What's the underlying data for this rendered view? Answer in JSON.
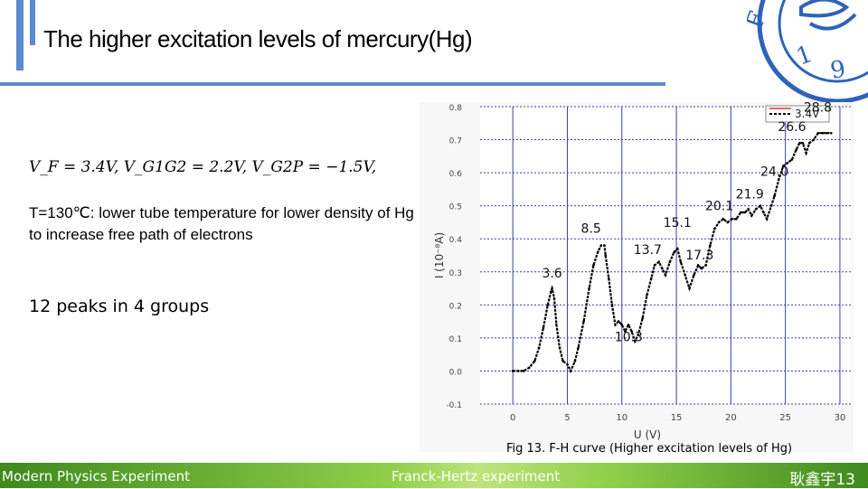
{
  "slide": {
    "title": "The higher excitation levels of mercury(Hg)",
    "formula": "V_F = 3.4V,  V_G1G2 = 2.2V, V_G2P = −1.5V,",
    "temp_note": "T=130℃: lower tube temperature for lower density of Hg to increase free path of electrons",
    "peaks_note": "12 peaks in 4 groups",
    "caption": "Fig 13. F-H curve (Higher excitation levels of Hg)",
    "accent_color": "#5b8bd0"
  },
  "footer": {
    "left": "Modern Physics Experiment",
    "center": "Franck-Hertz experiment",
    "right": "耿鑫宇13",
    "color": "#6cb33f"
  },
  "chart_data": {
    "type": "line",
    "xlabel": "U (V)",
    "ylabel": "I (10⁻⁸A)",
    "xlim": [
      -3,
      31
    ],
    "ylim": [
      -0.1,
      0.8
    ],
    "x_ticks": [
      "0",
      "5",
      "10",
      "15",
      "20",
      "25",
      "30"
    ],
    "y_ticks": [
      "-0.1",
      "0.0",
      "0.1",
      "0.2",
      "0.3",
      "0.4",
      "0.5",
      "0.6",
      "0.7",
      "0.8"
    ],
    "grid": true,
    "legend": {
      "label": "3.4V",
      "position": "top-right"
    },
    "series": [
      {
        "name": "3.4V",
        "color": "#000000",
        "x": [
          0,
          0.5,
          1.0,
          1.5,
          2.0,
          2.4,
          2.8,
          3.2,
          3.5,
          3.6,
          3.8,
          4.0,
          4.3,
          4.6,
          5.0,
          5.3,
          5.7,
          6.0,
          6.5,
          7.0,
          7.4,
          7.8,
          8.1,
          8.4,
          8.5,
          8.8,
          9.1,
          9.4,
          9.7,
          10.0,
          10.3,
          10.6,
          10.9,
          11.2,
          11.5,
          11.9,
          12.3,
          12.7,
          13.0,
          13.4,
          13.7,
          14.0,
          14.4,
          14.8,
          15.1,
          15.4,
          15.8,
          16.2,
          16.6,
          17.0,
          17.3,
          17.7,
          18.1,
          18.5,
          18.9,
          19.3,
          19.7,
          20.1,
          20.5,
          20.9,
          21.3,
          21.6,
          21.9,
          22.3,
          22.7,
          23.0,
          23.3,
          23.7,
          24.0,
          24.4,
          24.8,
          25.2,
          25.6,
          26.0,
          26.3,
          26.6,
          26.9,
          27.2,
          27.6,
          28.0,
          28.4,
          28.8,
          29.2
        ],
        "y": [
          0.0,
          0.0,
          0.0,
          0.01,
          0.03,
          0.07,
          0.13,
          0.2,
          0.24,
          0.25,
          0.22,
          0.14,
          0.07,
          0.03,
          0.02,
          0.0,
          0.03,
          0.07,
          0.15,
          0.25,
          0.32,
          0.36,
          0.38,
          0.38,
          0.35,
          0.28,
          0.2,
          0.14,
          0.15,
          0.14,
          0.12,
          0.14,
          0.12,
          0.09,
          0.11,
          0.16,
          0.23,
          0.28,
          0.32,
          0.33,
          0.31,
          0.29,
          0.33,
          0.36,
          0.37,
          0.33,
          0.29,
          0.25,
          0.29,
          0.32,
          0.31,
          0.32,
          0.38,
          0.43,
          0.45,
          0.46,
          0.45,
          0.46,
          0.46,
          0.48,
          0.48,
          0.49,
          0.47,
          0.49,
          0.5,
          0.48,
          0.46,
          0.5,
          0.53,
          0.58,
          0.62,
          0.63,
          0.64,
          0.67,
          0.69,
          0.69,
          0.66,
          0.69,
          0.7,
          0.72,
          0.72,
          0.72,
          0.72
        ]
      }
    ],
    "annotations": [
      {
        "text": "3.6",
        "x": 3.6,
        "y": 0.25
      },
      {
        "text": "8.5",
        "x": 8.5,
        "y": 0.38
      },
      {
        "text": "10.3",
        "x": 10.3,
        "y": 0.14
      },
      {
        "text": "13.7",
        "x": 13.7,
        "y": 0.33
      },
      {
        "text": "15.1",
        "x": 15.1,
        "y": 0.37
      },
      {
        "text": "17.3",
        "x": 17.3,
        "y": 0.31
      },
      {
        "text": "20.1",
        "x": 20.1,
        "y": 0.46
      },
      {
        "text": "21.9",
        "x": 21.9,
        "y": 0.49
      },
      {
        "text": "24.0",
        "x": 24.0,
        "y": 0.53
      },
      {
        "text": "26.6",
        "x": 26.6,
        "y": 0.69
      },
      {
        "text": "28.8",
        "x": 28.8,
        "y": 0.72
      }
    ]
  }
}
